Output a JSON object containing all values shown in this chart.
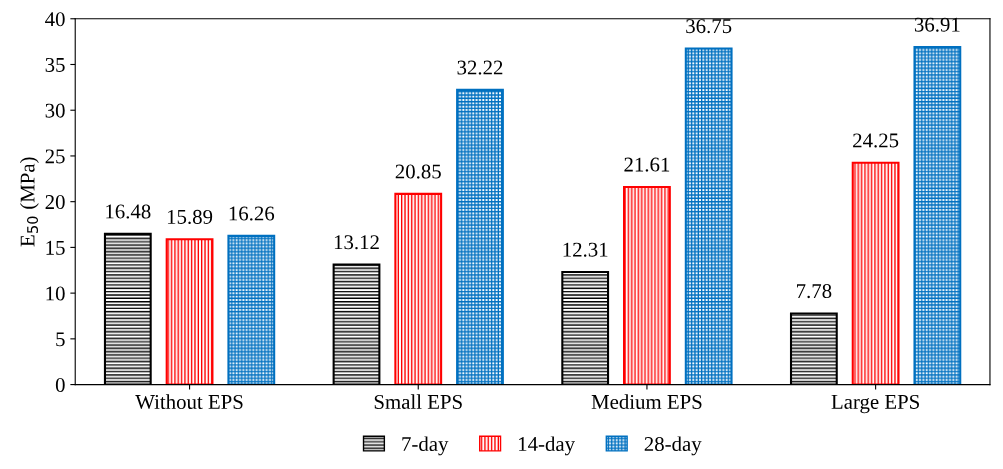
{
  "chart_data": {
    "type": "bar",
    "ylabel": "E$_{50}$ (MPa)",
    "categories": [
      "Without EPS",
      "Small EPS",
      "Medium EPS",
      "Large EPS"
    ],
    "series": [
      {
        "name": "7-day",
        "color": "#000000",
        "values": [
          16.48,
          13.12,
          12.31,
          7.78
        ]
      },
      {
        "name": "14-day",
        "color": "#ff0000",
        "values": [
          15.89,
          20.85,
          21.61,
          24.25
        ]
      },
      {
        "name": "28-day",
        "color": "#0070c0",
        "values": [
          16.26,
          32.22,
          36.75,
          36.91
        ]
      }
    ],
    "ylim": [
      0,
      40
    ],
    "yticks": [
      0,
      5,
      10,
      15,
      20,
      25,
      30,
      35,
      40
    ],
    "data_labels": true,
    "grid": false,
    "legend": "bottom"
  }
}
